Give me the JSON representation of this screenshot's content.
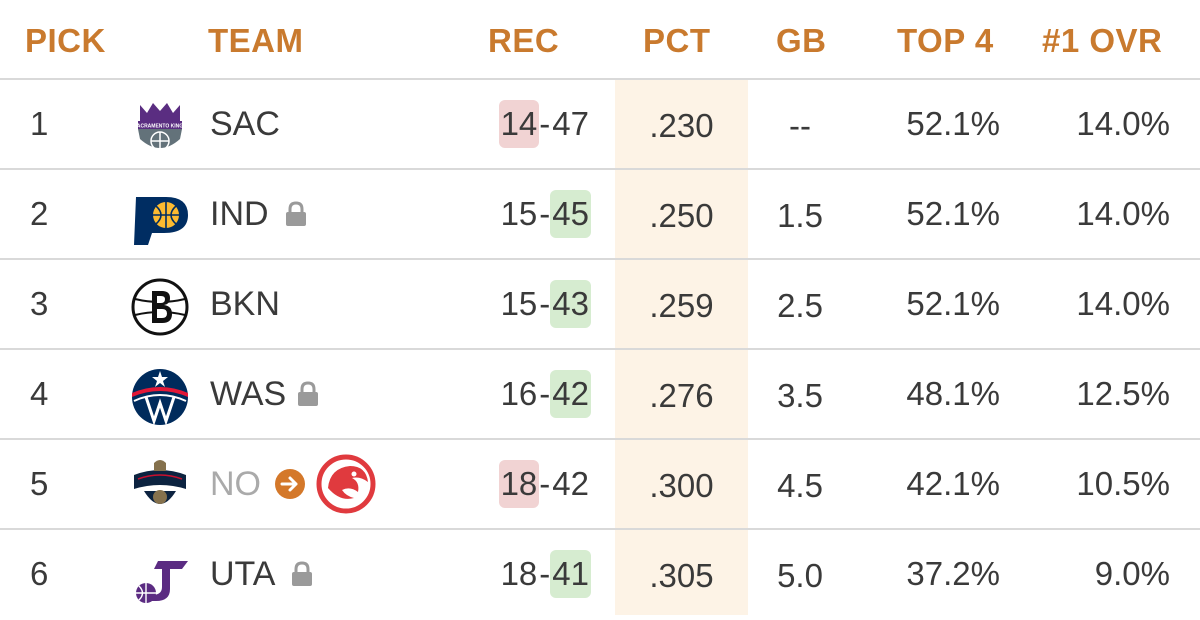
{
  "headers": {
    "pick": "PICK",
    "team": "TEAM",
    "rec": "REC",
    "pct": "PCT",
    "gb": "GB",
    "top4": "TOP 4",
    "ovr": "#1 OVR"
  },
  "rows": [
    {
      "pick": "1",
      "team": "SAC",
      "wins": "14",
      "dash": "-",
      "losses": "47",
      "pct": ".230",
      "gb": "--",
      "top4": "52.1%",
      "ovr": "14.0%"
    },
    {
      "pick": "2",
      "team": "IND",
      "wins": "15",
      "dash": "-",
      "losses": "45",
      "pct": ".250",
      "gb": "1.5",
      "top4": "52.1%",
      "ovr": "14.0%"
    },
    {
      "pick": "3",
      "team": "BKN",
      "wins": "15",
      "dash": "-",
      "losses": "43",
      "pct": ".259",
      "gb": "2.5",
      "top4": "52.1%",
      "ovr": "14.0%"
    },
    {
      "pick": "4",
      "team": "WAS",
      "wins": "16",
      "dash": "-",
      "losses": "42",
      "pct": ".276",
      "gb": "3.5",
      "top4": "48.1%",
      "ovr": "12.5%"
    },
    {
      "pick": "5",
      "team": "NO",
      "wins": "18",
      "dash": "-",
      "losses": "42",
      "pct": ".300",
      "gb": "4.5",
      "top4": "42.1%",
      "ovr": "10.5%"
    },
    {
      "pick": "6",
      "team": "UTA",
      "wins": "18",
      "dash": "-",
      "losses": "41",
      "pct": ".305",
      "gb": "5.0",
      "top4": "37.2%",
      "ovr": "9.0%"
    }
  ],
  "logos": {
    "sac": "kings-logo",
    "ind": "pacers-logo",
    "bkn": "nets-logo",
    "was": "wizards-logo",
    "no": "pelicans-logo",
    "atl": "hawks-logo",
    "uta": "jazz-logo"
  },
  "icons": {
    "lock": "lock-icon",
    "arrow": "arrow-right-circle-icon"
  },
  "colors": {
    "header": "#c97a2e",
    "pct_column_bg": "#fdf3e6",
    "win_highlight": "#f1d3d3",
    "loss_highlight": "#d6ecd0",
    "lock": "#9a9a9a",
    "arrow": "#d4782a"
  },
  "sac_logo_text": "SACRAMENTO KINGS"
}
